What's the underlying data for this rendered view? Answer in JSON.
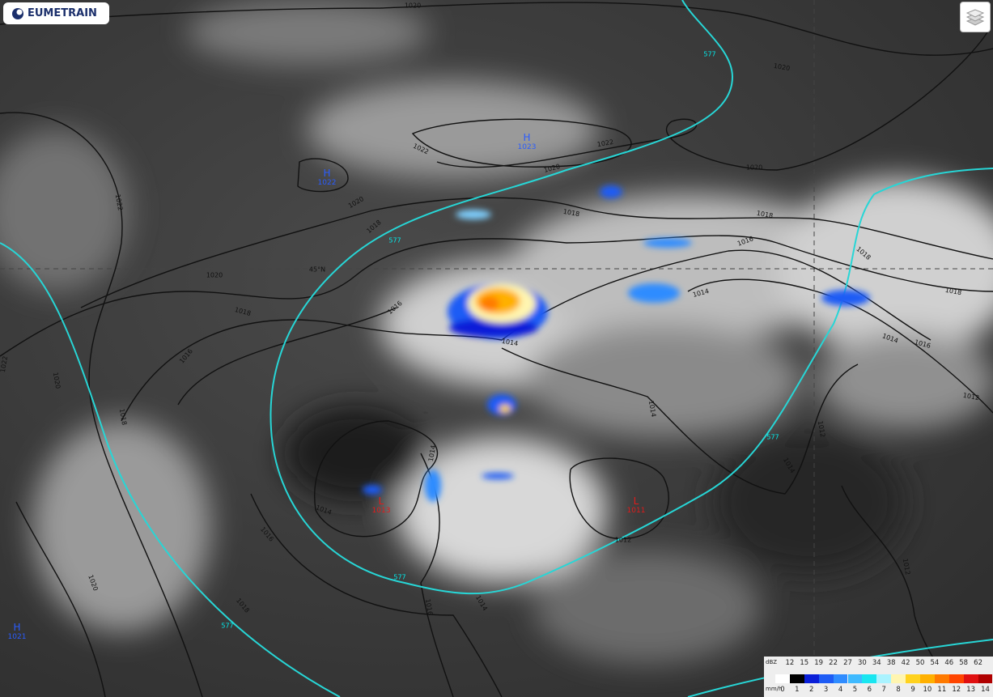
{
  "logo": "EUMETRAIN",
  "latitude_label": "45°N",
  "pressure_centers": [
    {
      "kind": "H",
      "value": "1022"
    },
    {
      "kind": "H",
      "value": "1023"
    },
    {
      "kind": "H",
      "value": "1021"
    },
    {
      "kind": "L",
      "value": "1013"
    },
    {
      "kind": "L",
      "value": "1011"
    }
  ],
  "isobar_labels": [
    "1020",
    "1020",
    "1022",
    "1022",
    "1020",
    "1020",
    "1018",
    "1018",
    "1016",
    "1018",
    "1018",
    "1014",
    "1014",
    "1016",
    "1012",
    "1012",
    "1014",
    "1012",
    "1014",
    "1014",
    "1016",
    "1018",
    "1020",
    "1016",
    "1018",
    "1020",
    "1022",
    "1022",
    "1020",
    "1018",
    "1016",
    "1014",
    "1016",
    "1014",
    "1012",
    "1020",
    "1018",
    "1014"
  ],
  "contour_labels": [
    "577",
    "577",
    "577",
    "577",
    "577"
  ],
  "legend": {
    "top_unit": "dBZ",
    "top_values": [
      "12",
      "15",
      "19",
      "22",
      "27",
      "30",
      "34",
      "38",
      "42",
      "50",
      "54",
      "46",
      "58",
      "62"
    ],
    "bottom_unit": "mm/h",
    "bottom_values": [
      "0",
      "1",
      "2",
      "3",
      "4",
      "5",
      "6",
      "7",
      "8",
      "9",
      "10",
      "11",
      "12",
      "13",
      "14"
    ],
    "colors": [
      "#ffffff",
      "#000000",
      "#0a1fd8",
      "#1e5cf5",
      "#2f8cff",
      "#3fbaff",
      "#19e6f0",
      "#aaf3ff",
      "#fff5b0",
      "#ffd21e",
      "#ffb000",
      "#ff7a00",
      "#ff4500",
      "#e01010",
      "#b00000"
    ]
  }
}
